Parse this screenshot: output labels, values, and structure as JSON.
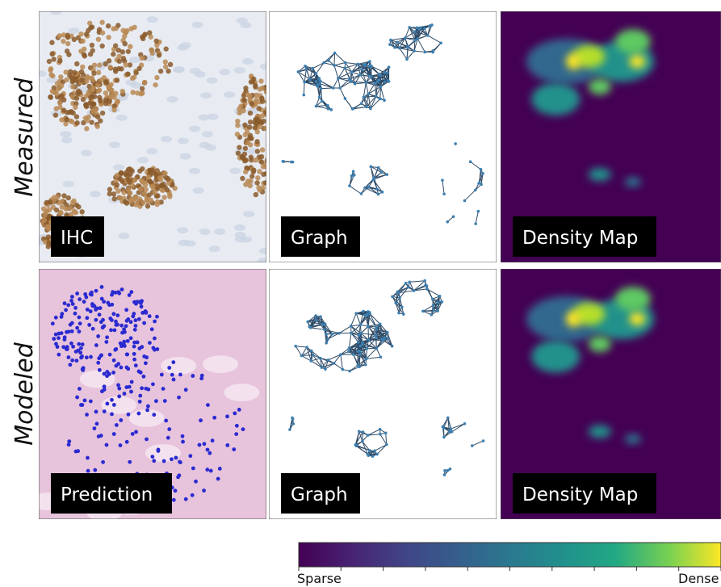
{
  "rows": [
    {
      "label": "Measured",
      "panels": [
        "IHC",
        "Graph",
        "Density Map"
      ]
    },
    {
      "label": "Modeled",
      "panels": [
        "Prediction",
        "Graph",
        "Density Map"
      ]
    }
  ],
  "colorbar": {
    "min_label": "Sparse",
    "max_label": "Dense"
  }
}
